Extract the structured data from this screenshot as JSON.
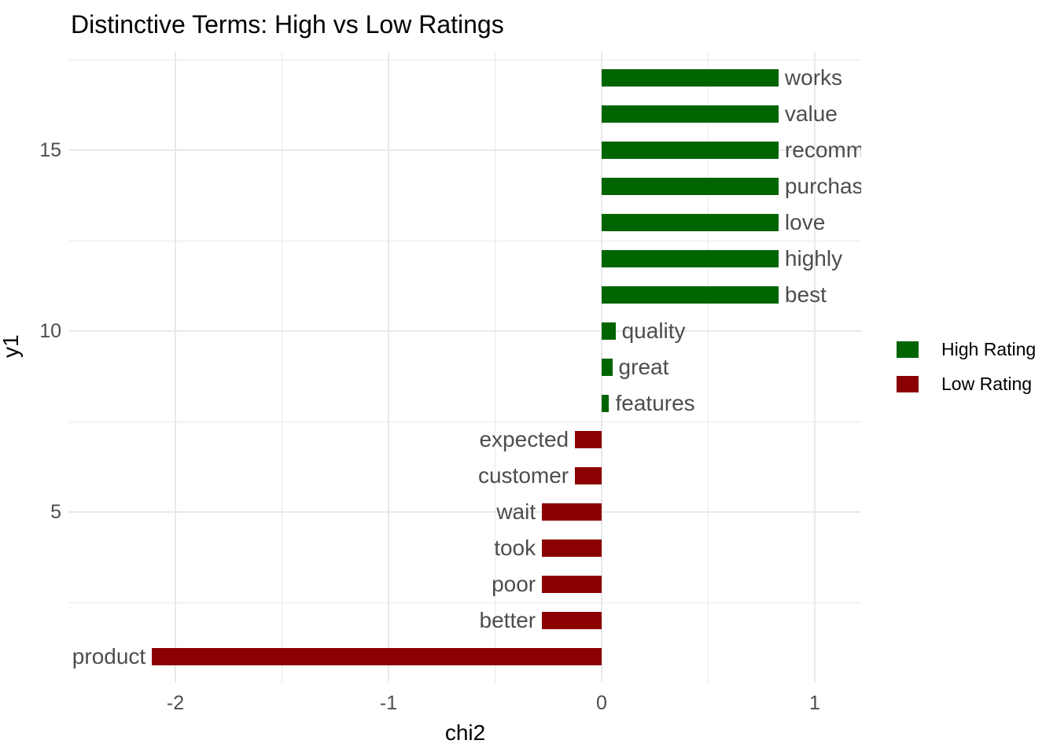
{
  "title": "Distinctive Terms: High vs Low Ratings",
  "colors": {
    "high_rating": "#006400",
    "low_rating": "#8B0000",
    "gridline": "#E8E8E8",
    "axis_text": "#4D4D4D",
    "bar_label_text": "#4D4D4D",
    "title_text": "#000000"
  },
  "legend": {
    "position": "right",
    "items": [
      {
        "label": "High Rating",
        "color": "#006400"
      },
      {
        "label": "Low Rating",
        "color": "#8B0000"
      }
    ]
  },
  "chart_data": {
    "type": "bar",
    "orientation": "horizontal",
    "title": "Distinctive Terms: High vs Low Ratings",
    "xlabel": "chi2",
    "ylabel": "y1",
    "x_major_ticks": [
      -2,
      -1,
      0,
      1
    ],
    "x_minor_ticks": [
      -1.5,
      -0.5,
      0.5
    ],
    "y_major_ticks": [
      5,
      10,
      15
    ],
    "y_minor_ticks": [
      2.5,
      7.5,
      12.5,
      17.5
    ],
    "xlim": [
      -2.5,
      1.22
    ],
    "ylim": [
      0.2,
      17.8
    ],
    "grid": true,
    "bars": [
      {
        "term": "works",
        "y1": 17,
        "chi2": 0.83,
        "group": "High Rating"
      },
      {
        "term": "value",
        "y1": 16,
        "chi2": 0.83,
        "group": "High Rating"
      },
      {
        "term": "recommend",
        "y1": 15,
        "chi2": 0.83,
        "group": "High Rating"
      },
      {
        "term": "purchase",
        "y1": 14,
        "chi2": 0.83,
        "group": "High Rating"
      },
      {
        "term": "love",
        "y1": 13,
        "chi2": 0.83,
        "group": "High Rating"
      },
      {
        "term": "highly",
        "y1": 12,
        "chi2": 0.83,
        "group": "High Rating"
      },
      {
        "term": "best",
        "y1": 11,
        "chi2": 0.83,
        "group": "High Rating"
      },
      {
        "term": "quality",
        "y1": 10,
        "chi2": 0.065,
        "group": "High Rating"
      },
      {
        "term": "great",
        "y1": 9,
        "chi2": 0.05,
        "group": "High Rating"
      },
      {
        "term": "features",
        "y1": 8,
        "chi2": 0.035,
        "group": "High Rating"
      },
      {
        "term": "expected",
        "y1": 7,
        "chi2": -0.125,
        "group": "Low Rating"
      },
      {
        "term": "customer",
        "y1": 6,
        "chi2": -0.125,
        "group": "Low Rating"
      },
      {
        "term": "wait",
        "y1": 5,
        "chi2": -0.28,
        "group": "Low Rating"
      },
      {
        "term": "took",
        "y1": 4,
        "chi2": -0.28,
        "group": "Low Rating"
      },
      {
        "term": "poor",
        "y1": 3,
        "chi2": -0.28,
        "group": "Low Rating"
      },
      {
        "term": "better",
        "y1": 2,
        "chi2": -0.28,
        "group": "Low Rating"
      },
      {
        "term": "product",
        "y1": 1,
        "chi2": -2.11,
        "group": "Low Rating"
      }
    ]
  }
}
